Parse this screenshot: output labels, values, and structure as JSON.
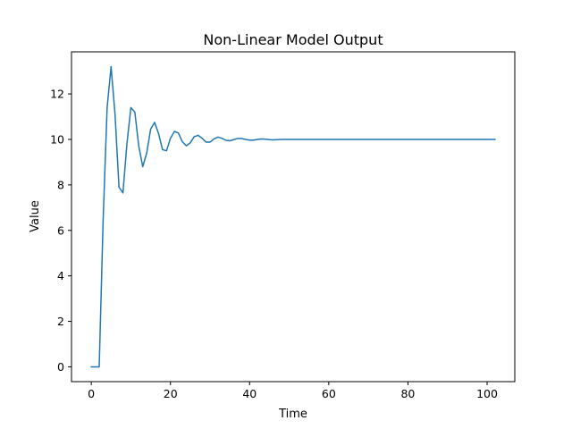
{
  "chart_data": {
    "type": "line",
    "title": "Non-Linear Model Output",
    "xlabel": "Time",
    "ylabel": "Value",
    "xlim": [
      -5,
      107
    ],
    "ylim": [
      -0.65,
      13.85
    ],
    "xticks": [
      0,
      20,
      40,
      60,
      80,
      100
    ],
    "yticks": [
      0,
      2,
      4,
      6,
      8,
      10,
      12
    ],
    "grid": false,
    "legend": false,
    "series": [
      {
        "color": "#1f77b4",
        "x": [
          0,
          1,
          2,
          3,
          4,
          5,
          6,
          7,
          8,
          9,
          10,
          11,
          12,
          13,
          14,
          15,
          16,
          17,
          18,
          19,
          20,
          21,
          22,
          23,
          24,
          25,
          26,
          27,
          28,
          29,
          30,
          31,
          32,
          33,
          34,
          35,
          36,
          37,
          38,
          39,
          40,
          41,
          42,
          43,
          44,
          45,
          46,
          47,
          48,
          49,
          50,
          52,
          54,
          56,
          58,
          60,
          62,
          64,
          66,
          68,
          70,
          72,
          74,
          76,
          78,
          80,
          82,
          84,
          86,
          88,
          90,
          92,
          94,
          96,
          98,
          100,
          102
        ],
        "y": [
          0,
          0,
          0,
          6.5,
          11.4,
          13.2,
          11.1,
          7.9,
          7.65,
          9.8,
          11.4,
          11.2,
          9.7,
          8.8,
          9.4,
          10.45,
          10.75,
          10.25,
          9.55,
          9.5,
          10.05,
          10.35,
          10.28,
          9.9,
          9.72,
          9.85,
          10.12,
          10.18,
          10.05,
          9.88,
          9.88,
          10.02,
          10.1,
          10.05,
          9.96,
          9.94,
          9.99,
          10.04,
          10.04,
          10.0,
          9.97,
          9.97,
          10.0,
          10.02,
          10.01,
          9.99,
          9.98,
          9.99,
          10.0,
          10.0,
          10.0,
          10.0,
          10.0,
          10.0,
          10.0,
          10.0,
          10.0,
          10.0,
          10.0,
          10.0,
          10.0,
          10.0,
          10.0,
          10.0,
          10.0,
          10.0,
          10.0,
          10.0,
          10.0,
          10.0,
          10.0,
          10.0,
          10.0,
          10.0,
          10.0,
          10.0,
          10.0
        ]
      }
    ]
  }
}
